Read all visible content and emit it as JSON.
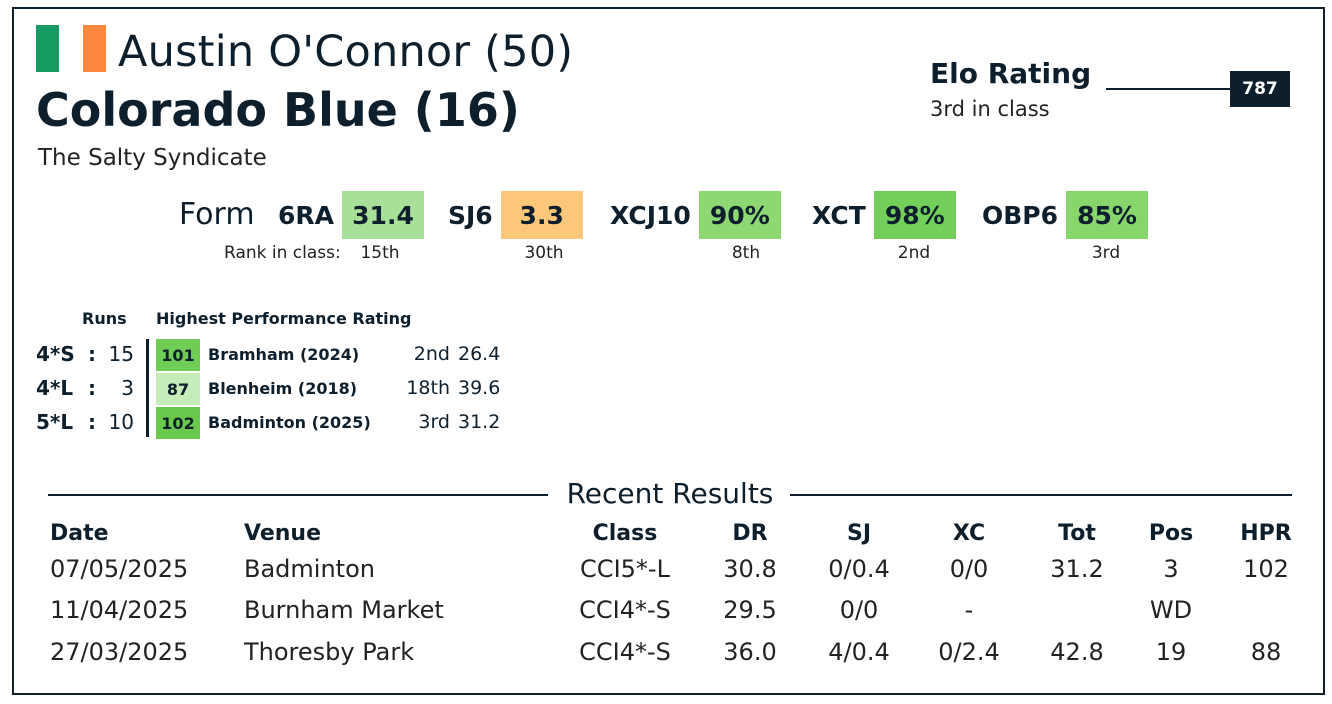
{
  "header": {
    "flag_colors": [
      "#169b62",
      "#ffffff",
      "#ff883e"
    ],
    "rider": "Austin O'Connor (50)",
    "horse": "Colorado Blue (16)",
    "owner": "The Salty Syndicate"
  },
  "elo": {
    "title": "Elo Rating",
    "subtitle": "3rd in class",
    "value": "787"
  },
  "form": {
    "label": "Form",
    "rank_label": "Rank in class:",
    "items": [
      {
        "name": "6RA",
        "value": "31.4",
        "rank": "15th",
        "color": "#a8e09a"
      },
      {
        "name": "SJ6",
        "value": "3.3",
        "rank": "30th",
        "color": "#fdc77a"
      },
      {
        "name": "XCJ10",
        "value": "90%",
        "rank": "8th",
        "color": "#8ed873"
      },
      {
        "name": "XCT",
        "value": "98%",
        "rank": "2nd",
        "color": "#72d05a"
      },
      {
        "name": "OBP6",
        "value": "85%",
        "rank": "3rd",
        "color": "#86d66b"
      }
    ]
  },
  "runs": {
    "runs_header": "Runs",
    "hpr_header": "Highest Performance Rating",
    "rows": [
      {
        "class": "4*S",
        "colon": ":",
        "count": "15",
        "hpr": "101",
        "event": "Bramham (2024)",
        "pos": "2nd",
        "score": "26.4",
        "color": "#6fcc55"
      },
      {
        "class": "4*L",
        "colon": ":",
        "count": "3",
        "hpr": "87",
        "event": "Blenheim (2018)",
        "pos": "18th",
        "score": "39.6",
        "color": "#c6ecb9"
      },
      {
        "class": "5*L",
        "colon": ":",
        "count": "10",
        "hpr": "102",
        "event": "Badminton (2025)",
        "pos": "3rd",
        "score": "31.2",
        "color": "#68c94d"
      }
    ]
  },
  "recent": {
    "title": "Recent Results",
    "headers": {
      "date": "Date",
      "venue": "Venue",
      "class": "Class",
      "dr": "DR",
      "sj": "SJ",
      "xc": "XC",
      "tot": "Tot",
      "pos": "Pos",
      "hpr": "HPR"
    },
    "rows": [
      {
        "date": "07/05/2025",
        "venue": "Badminton",
        "class": "CCI5*-L",
        "dr": "30.8",
        "sj": "0/0.4",
        "xc": "0/0",
        "tot": "31.2",
        "pos": "3",
        "hpr": "102"
      },
      {
        "date": "11/04/2025",
        "venue": "Burnham Market",
        "class": "CCI4*-S",
        "dr": "29.5",
        "sj": "0/0",
        "xc": "-",
        "tot": "",
        "pos": "WD",
        "hpr": ""
      },
      {
        "date": "27/03/2025",
        "venue": "Thoresby Park",
        "class": "CCI4*-S",
        "dr": "36.0",
        "sj": "4/0.4",
        "xc": "0/2.4",
        "tot": "42.8",
        "pos": "19",
        "hpr": "88"
      }
    ]
  }
}
